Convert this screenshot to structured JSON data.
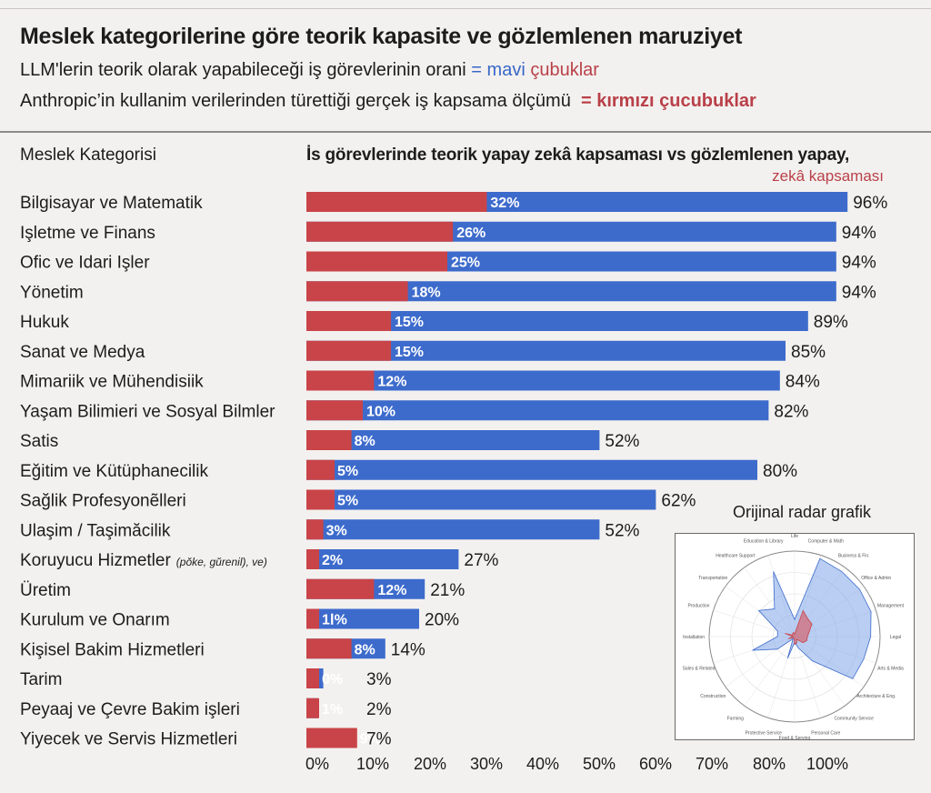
{
  "header": {
    "title": "Meslek kategorilerine göre teorik kapasite ve gözlemlenen maruziyet",
    "subtitle1_text": "LLM'lerin teorik olarak yapabileceği iş görevlerinin orani",
    "subtitle1_eq": "=",
    "subtitle1_blue": "mavi",
    "subtitle1_red": "çubuklar",
    "subtitle2_text": "Anthropic’in kullanim verilerinden türettiği gerçek iş kapsama ölçümü",
    "subtitle2_key": "= kırmızı çucubuklar"
  },
  "columns": {
    "left": "Meslek Kategorisi",
    "right": "İs görevlerinde teorik yapay zekâ kapsaması vs gözlemlenen yapay,",
    "right_line2": "zekâ kapsaması"
  },
  "colors": {
    "theoretical": "#3d6bcc",
    "observed": "#c94448"
  },
  "chart_data": {
    "type": "bar",
    "orientation": "horizontal",
    "categories": [
      "Bilgisayar ve Matematik",
      "Işletme ve Finans",
      "Ofic ve Idari Işler",
      "Yönetim",
      "Hukuk",
      "Sanat ve Medya",
      "Mimariik ve Mühendisiik",
      "Yaşam Bilimieri ve Sosyal Bilmler",
      "Satis",
      "Eğitim ve Kütüphanecilik",
      "Sağlik Profesyonẽlleri",
      "Ulaşim / Taşimăcilik",
      "Koruyucu Hizmetler",
      "Üretim",
      "Kurulum ve Onarım",
      "Kişisel Bakim Hizmetleri",
      "Tarim",
      "Peyaaj ve Çevre Bakim işleri",
      "Yiyecek ve Servis Hizmetleri"
    ],
    "category_note": {
      "index": 12,
      "text": "(pŏke, gŭrenil), ve)"
    },
    "series": [
      {
        "key": "theoretical",
        "values": [
          96,
          94,
          94,
          94,
          89,
          85,
          84,
          82,
          52,
          80,
          62,
          52,
          27,
          21,
          20,
          14,
          3,
          2,
          7
        ]
      },
      {
        "key": "observed",
        "values": [
          32,
          26,
          25,
          18,
          15,
          15,
          12,
          10,
          8,
          5,
          5,
          3,
          2,
          12,
          1,
          8,
          0,
          1,
          9
        ]
      }
    ],
    "theoretical_labels": [
      "96%",
      "94%",
      "94%",
      "94%",
      "89%",
      "85%",
      "84%",
      "82%",
      "52%",
      "80%",
      "62%",
      "52%",
      "27%",
      "21%",
      "20%",
      "14%",
      "3%",
      "2%",
      "7%"
    ],
    "observed_labels": [
      "32%",
      "26%",
      "25%",
      "18%",
      "15%",
      "15%",
      "12%",
      "10%",
      "8%",
      "5%",
      "5%",
      "3%",
      "2%",
      "12%",
      "1Ⅰ%",
      "8%",
      "0%",
      "1%",
      "9%"
    ],
    "xlim": [
      0,
      100
    ],
    "x_ticks": [
      "0%",
      "10%",
      "20%",
      "30%",
      "40%",
      "50%",
      "60%",
      "70%",
      "80%",
      "100%"
    ]
  },
  "inset": {
    "title": "Orijinal radar grafik",
    "labels": [
      "Life",
      "Computer & Math",
      "Business & Fin.",
      "Office & Admin",
      "Management",
      "Legal",
      "Arts & Media",
      "Architecture & Eng.",
      "Community Service",
      "Personal Care",
      "Food & Serving",
      "Protective Service",
      "Farming",
      "Construction",
      "Sales & Related",
      "Installation",
      "Production",
      "Transportation",
      "Healthcare Support",
      "Education & Library"
    ],
    "theoretical": [
      20,
      96,
      94,
      94,
      94,
      89,
      85,
      84,
      35,
      14,
      7,
      27,
      3,
      25,
      52,
      20,
      21,
      52,
      40,
      80
    ],
    "observed": [
      3,
      32,
      26,
      25,
      18,
      15,
      15,
      12,
      4,
      8,
      9,
      2,
      0,
      2,
      8,
      1,
      12,
      3,
      4,
      5
    ]
  }
}
